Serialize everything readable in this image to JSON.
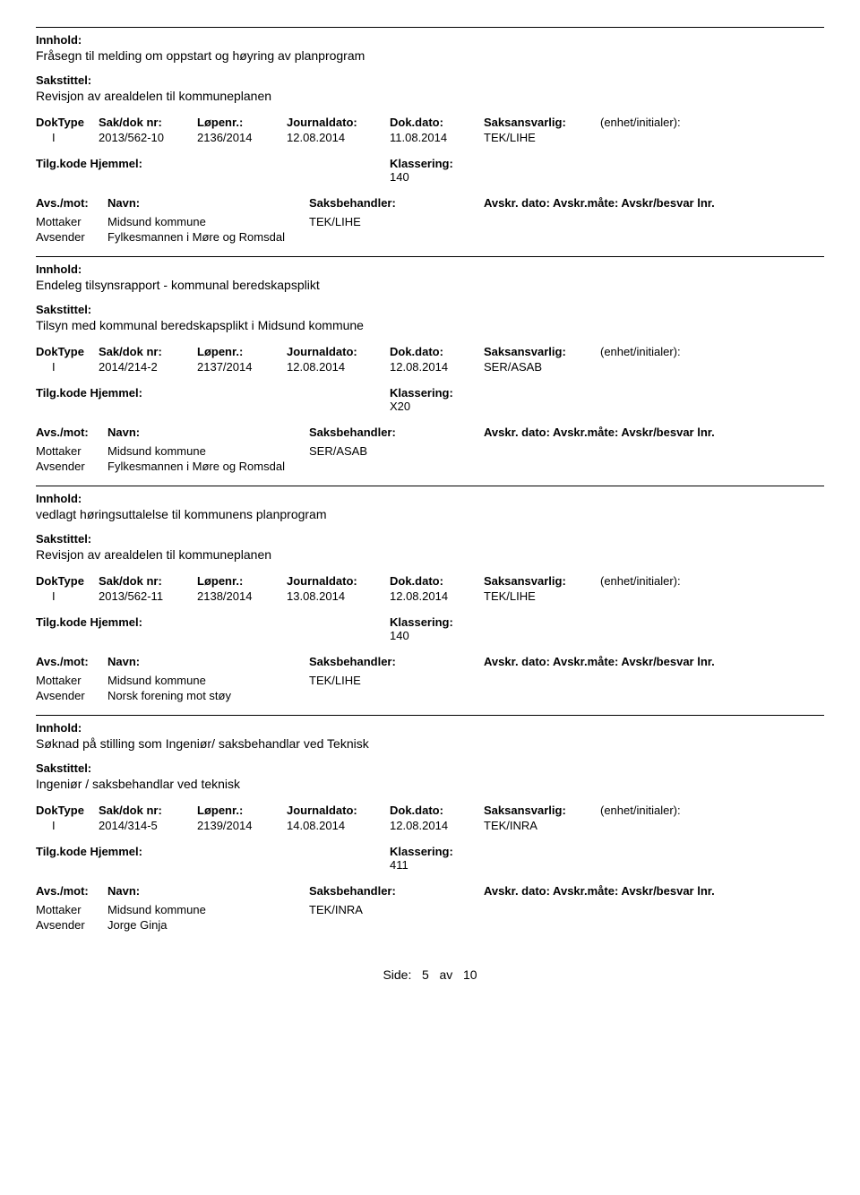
{
  "labels": {
    "innhold": "Innhold:",
    "sakstittel": "Sakstittel:",
    "doktype": "DokType",
    "sakdok": "Sak/dok nr:",
    "lopenr": "Løpenr.:",
    "journaldato": "Journaldato:",
    "dokdato": "Dok.dato:",
    "saksansvarlig": "Saksansvarlig:",
    "enhet": "(enhet/initialer):",
    "tilgkode": "Tilg.kode",
    "hjemmel": "Hjemmel:",
    "klassering": "Klassering:",
    "avsmot": "Avs./mot:",
    "navn": "Navn:",
    "saksbehandler": "Saksbehandler:",
    "avskr": "Avskr. dato: Avskr.måte: Avskr/besvar lnr.",
    "mottaker": "Mottaker",
    "avsender": "Avsender"
  },
  "records": [
    {
      "innhold": "Fråsegn til melding om oppstart og høyring av planprogram",
      "sakstittel": "Revisjon av arealdelen til kommuneplanen",
      "doktype": "I",
      "sakdok": "2013/562-10",
      "lopenr": "2136/2014",
      "journaldato": "12.08.2014",
      "dokdato": "11.08.2014",
      "saksansvarlig": "TEK/LIHE",
      "klassering": "140",
      "mottaker": "Midsund kommune",
      "avsender": "Fylkesmannen i Møre og Romsdal",
      "saksbehandler": "TEK/LIHE"
    },
    {
      "innhold": "Endeleg tilsynsrapport - kommunal beredskapsplikt",
      "sakstittel": "Tilsyn med kommunal beredskapsplikt i Midsund kommune",
      "doktype": "I",
      "sakdok": "2014/214-2",
      "lopenr": "2137/2014",
      "journaldato": "12.08.2014",
      "dokdato": "12.08.2014",
      "saksansvarlig": "SER/ASAB",
      "klassering": "X20",
      "mottaker": "Midsund kommune",
      "avsender": "Fylkesmannen i Møre og Romsdal",
      "saksbehandler": "SER/ASAB"
    },
    {
      "innhold": "vedlagt høringsuttalelse til kommunens planprogram",
      "sakstittel": "Revisjon av arealdelen til kommuneplanen",
      "doktype": "I",
      "sakdok": "2013/562-11",
      "lopenr": "2138/2014",
      "journaldato": "13.08.2014",
      "dokdato": "12.08.2014",
      "saksansvarlig": "TEK/LIHE",
      "klassering": "140",
      "mottaker": "Midsund kommune",
      "avsender": "Norsk forening mot støy",
      "saksbehandler": "TEK/LIHE"
    },
    {
      "innhold": "Søknad på stilling som Ingeniør/ saksbehandlar ved Teknisk",
      "sakstittel": "Ingeniør / saksbehandlar ved teknisk",
      "doktype": "I",
      "sakdok": "2014/314-5",
      "lopenr": "2139/2014",
      "journaldato": "14.08.2014",
      "dokdato": "12.08.2014",
      "saksansvarlig": "TEK/INRA",
      "klassering": "411",
      "mottaker": "Midsund kommune",
      "avsender": "Jorge Ginja",
      "saksbehandler": "TEK/INRA"
    }
  ],
  "footer": {
    "prefix": "Side:",
    "page": "5",
    "sep": "av",
    "total": "10"
  }
}
